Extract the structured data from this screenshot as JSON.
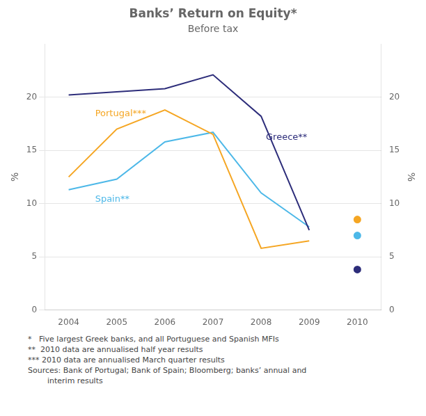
{
  "chart_data": {
    "type": "line",
    "title": "Banks’ Return on Equity*",
    "subtitle": "Before tax",
    "ylabel": "%",
    "y2label": "%",
    "x": [
      2004,
      2005,
      2006,
      2007,
      2008,
      2009,
      2010
    ],
    "xlim": [
      2003.5,
      2010.5
    ],
    "xticks": [
      2004,
      2005,
      2006,
      2007,
      2008,
      2009,
      2010
    ],
    "ylim": [
      0,
      25
    ],
    "yticks": [
      0,
      5,
      10,
      15,
      20
    ],
    "y2lim": [
      0,
      25
    ],
    "y2ticks": [
      0,
      5,
      10,
      15,
      20
    ],
    "grid": "y",
    "series": [
      {
        "name": "Greece**",
        "color": "#2d2d7a",
        "values": [
          20.2,
          20.5,
          20.8,
          22.1,
          18.2,
          7.5,
          null
        ]
      },
      {
        "name": "Portugal***",
        "color": "#f5a623",
        "values": [
          12.5,
          17.0,
          18.8,
          16.5,
          5.8,
          6.5,
          null
        ]
      },
      {
        "name": "Portugal***",
        "color": "#f5a623",
        "type": "scatter",
        "marker": "circle",
        "values": [
          null,
          null,
          null,
          null,
          null,
          null,
          8.5
        ]
      },
      {
        "name": "Spain**",
        "color": "#4db8e8",
        "values": [
          11.3,
          12.3,
          15.8,
          16.7,
          11.0,
          7.8,
          null
        ]
      },
      {
        "name": "Spain**",
        "color": "#4db8e8",
        "type": "scatter",
        "marker": "circle",
        "values": [
          null,
          null,
          null,
          null,
          null,
          null,
          7.0
        ]
      },
      {
        "name": "Greece**",
        "color": "#2d2d7a",
        "type": "scatter",
        "marker": "circle",
        "values": [
          null,
          null,
          null,
          null,
          null,
          null,
          3.8
        ]
      }
    ],
    "annotations": [
      {
        "text": "Greece**",
        "x": 2008.1,
        "y": 15.8,
        "color": "#2d2d7a"
      },
      {
        "text": "Portugal***",
        "x": 2004.55,
        "y": 18.0,
        "color": "#f5a623"
      },
      {
        "text": "Spain**",
        "x": 2004.55,
        "y": 10.0,
        "color": "#4db8e8"
      }
    ],
    "footnote": [
      "*   Five largest Greek banks, and all Portuguese and Spanish MFIs",
      "**  2010 data are annualised half year results",
      "*** 2010 data are annualised March quarter results",
      "Sources: Bank of Portugal; Bank of Spain; Bloomberg; banks’ annual and",
      "        interim results"
    ]
  }
}
